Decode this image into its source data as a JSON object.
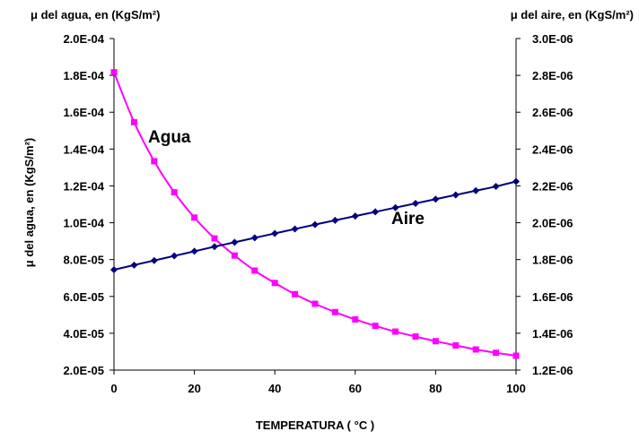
{
  "chart_data": {
    "type": "line",
    "title": "",
    "top_left_label": "μ del agua, en (KgS/m²)",
    "top_right_label": "μ del aire, en (KgS/m²)",
    "xlabel": "TEMPERATURA ( °C )",
    "ylabel_left": "μ del agua, en (KgS/m²)",
    "xlim": [
      0,
      100
    ],
    "ylim_left": [
      2e-05,
      0.0002
    ],
    "ylim_right": [
      1.2e-06,
      3e-06
    ],
    "x_ticks": [
      "0",
      "20",
      "40",
      "60",
      "80",
      "100"
    ],
    "y_left_ticks": [
      "2.0E-05",
      "4.0E-05",
      "6.0E-05",
      "8.0E-05",
      "1.0E-04",
      "1.2E-04",
      "1.4E-04",
      "1.6E-04",
      "1.8E-04",
      "2.0E-04"
    ],
    "y_right_ticks": [
      "1.2E-06",
      "1.4E-06",
      "1.6E-06",
      "1.8E-06",
      "2.0E-06",
      "2.2E-06",
      "2.4E-06",
      "2.6E-06",
      "2.8E-06",
      "3.0E-06"
    ],
    "grid": false,
    "x": [
      0,
      5,
      10,
      15,
      20,
      25,
      30,
      35,
      40,
      45,
      50,
      55,
      60,
      65,
      70,
      75,
      80,
      85,
      90,
      95,
      100
    ],
    "series": [
      {
        "name": "Agua",
        "axis": "left",
        "color": "#ff00ff",
        "marker": "square",
        "values": [
          0.0001817,
          0.0001546,
          0.0001334,
          0.0001165,
          0.0001028,
          9.15e-05,
          8.22e-05,
          7.4e-05,
          6.73e-05,
          6.12e-05,
          5.6e-05,
          5.15e-05,
          4.75e-05,
          4.4e-05,
          4.09e-05,
          3.82e-05,
          3.57e-05,
          3.34e-05,
          3.12e-05,
          2.94e-05,
          2.78e-05
        ]
      },
      {
        "name": "Aire",
        "axis": "right",
        "color": "#000080",
        "marker": "diamond",
        "values": [
          1.745e-06,
          1.77e-06,
          1.795e-06,
          1.82e-06,
          1.845e-06,
          1.87e-06,
          1.894e-06,
          1.918e-06,
          1.942e-06,
          1.966e-06,
          1.99e-06,
          2.013e-06,
          2.036e-06,
          2.059e-06,
          2.082e-06,
          2.105e-06,
          2.128e-06,
          2.151e-06,
          2.174e-06,
          2.197e-06,
          2.224e-06
        ]
      }
    ]
  }
}
